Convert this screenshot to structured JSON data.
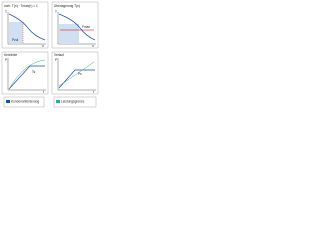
{
  "panels": [
    {
      "title": "vorh. T(n) · Tmax(n) = 1",
      "x_label": "n",
      "y_label": "T",
      "note": "Pzul"
    },
    {
      "title": "Überlagerung T(n)",
      "x_label": "n",
      "y_label": "T",
      "note": "Fmax"
    },
    {
      "title": "Kennlinie",
      "x_label": "t",
      "y_label": "P",
      "note": "Ts"
    },
    {
      "title": "Verlauf",
      "x_label": "t",
      "y_label": "P",
      "note": "Ps"
    }
  ],
  "legend": [
    "Kundenanforderung",
    "Leistungsgrenze"
  ]
}
